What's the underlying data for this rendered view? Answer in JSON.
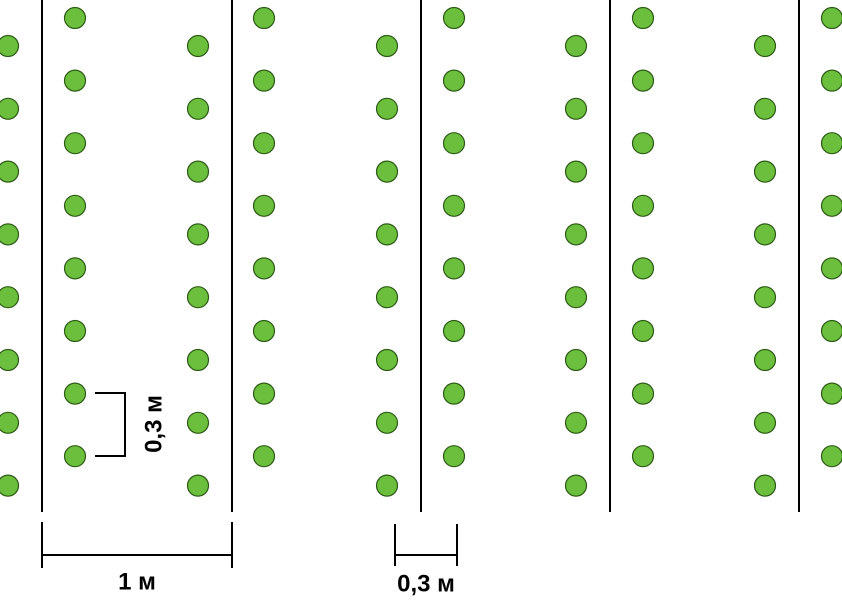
{
  "dimensions": {
    "plant_spacing": "0,3 м",
    "row_spacing": "1 м",
    "bed_gap": "0,3 м"
  }
}
